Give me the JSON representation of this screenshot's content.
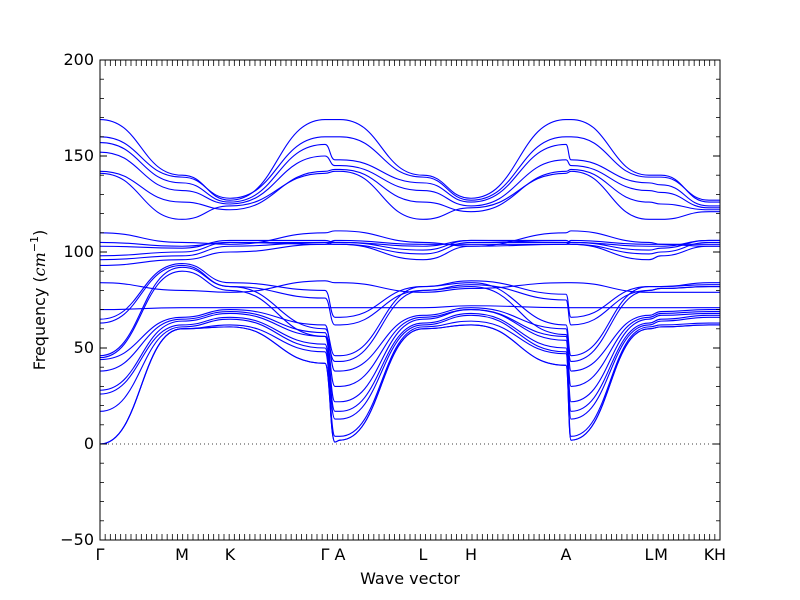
{
  "chart_data": {
    "type": "line",
    "title": "",
    "xlabel": "Wave vector",
    "ylabel": "Frequency (cm⁻¹)",
    "ylabel_parts": {
      "prefix": "Frequency (",
      "unit": "cm",
      "exponent": "−1",
      "suffix": ")"
    },
    "ylim": [
      -50,
      200
    ],
    "yticks": [
      -50,
      0,
      50,
      100,
      150,
      200
    ],
    "ytick_labels": [
      "−50",
      "0",
      "50",
      "100",
      "150",
      "200"
    ],
    "xlim": [
      0,
      1
    ],
    "high_symmetry_points": [
      {
        "label": "Γ",
        "x": 0.0
      },
      {
        "label": "M",
        "x": 0.1323
      },
      {
        "label": "K",
        "x": 0.2097
      },
      {
        "label": "Γ",
        "x": 0.3629
      },
      {
        "label": "A",
        "x": 0.3871
      },
      {
        "label": "L",
        "x": 0.521
      },
      {
        "label": "H",
        "x": 0.5984
      },
      {
        "label": "A",
        "x": 0.7516
      },
      {
        "label": "L",
        "x": 0.8855
      },
      {
        "label": "M",
        "x": 0.9048
      },
      {
        "label": "K",
        "x": 0.9823
      },
      {
        "label": "H",
        "x": 1.0
      }
    ],
    "zero_line": 0,
    "line_color": "#0000ff",
    "zero_line_color": "#000000",
    "grid": false,
    "series": [
      {
        "values": [
          0,
          60,
          61,
          42,
          1,
          2,
          60,
          62,
          41,
          2,
          60,
          61,
          62,
          62
        ]
      },
      {
        "values": [
          0,
          60,
          61,
          42,
          1,
          2,
          60,
          62,
          41,
          2,
          60,
          61,
          62,
          62
        ]
      },
      {
        "values": [
          0,
          60,
          62,
          48,
          4,
          4,
          61,
          64,
          47,
          4,
          61,
          62,
          63,
          63
        ]
      },
      {
        "values": [
          17,
          61,
          65,
          50,
          13,
          13,
          62,
          67,
          48,
          13,
          62,
          64,
          66,
          66
        ]
      },
      {
        "values": [
          26,
          62,
          66,
          52,
          17,
          17,
          63,
          68,
          50,
          17,
          63,
          65,
          67,
          67
        ]
      },
      {
        "values": [
          28,
          64,
          68,
          56,
          22,
          22,
          65,
          70,
          54,
          22,
          65,
          67,
          68,
          68
        ]
      },
      {
        "values": [
          38,
          65,
          69,
          58,
          30,
          30,
          66,
          70,
          56,
          30,
          66,
          68,
          69,
          69
        ]
      },
      {
        "values": [
          44,
          66,
          70,
          62,
          38,
          38,
          67,
          71,
          60,
          38,
          67,
          69,
          70,
          70
        ]
      },
      {
        "values": [
          45,
          90,
          80,
          56,
          43,
          43,
          80,
          82,
          57,
          43,
          80,
          81,
          82,
          82
        ]
      },
      {
        "values": [
          46,
          92,
          82,
          60,
          46,
          46,
          82,
          84,
          62,
          46,
          82,
          82,
          84,
          84
        ]
      },
      {
        "values": [
          63,
          93,
          82,
          76,
          62,
          62,
          80,
          83,
          75,
          62,
          80,
          81,
          82,
          82
        ]
      },
      {
        "values": [
          65,
          94,
          84,
          80,
          66,
          66,
          82,
          85,
          78,
          66,
          82,
          82,
          83,
          83
        ]
      },
      {
        "values": [
          70,
          71,
          71,
          71,
          71,
          71,
          71,
          72,
          71,
          71,
          71,
          71,
          71,
          71
        ]
      },
      {
        "values": [
          84,
          80,
          79,
          85,
          84,
          84,
          79,
          81,
          84,
          84,
          79,
          79,
          79,
          79
        ]
      },
      {
        "values": [
          93,
          96,
          100,
          104,
          104,
          104,
          96,
          103,
          104,
          104,
          96,
          98,
          103,
          103
        ]
      },
      {
        "values": [
          96,
          98,
          103,
          105,
          104,
          104,
          99,
          105,
          105,
          104,
          99,
          100,
          105,
          105
        ]
      },
      {
        "values": [
          98,
          100,
          105,
          105,
          105,
          105,
          101,
          106,
          105,
          105,
          101,
          102,
          106,
          106
        ]
      },
      {
        "values": [
          103,
          102,
          106,
          106,
          105,
          105,
          103,
          106,
          106,
          105,
          103,
          103,
          106,
          106
        ]
      },
      {
        "values": [
          105,
          103,
          105,
          104,
          106,
          106,
          104,
          104,
          104,
          106,
          104,
          104,
          104,
          104
        ]
      },
      {
        "values": [
          110,
          105,
          104,
          110,
          111,
          111,
          105,
          103,
          110,
          111,
          105,
          104,
          103,
          103
        ]
      },
      {
        "values": [
          141,
          117,
          124,
          141,
          142,
          142,
          117,
          123,
          141,
          142,
          117,
          117,
          121,
          121
        ]
      },
      {
        "values": [
          142,
          126,
          122,
          142,
          143,
          143,
          126,
          121,
          142,
          143,
          126,
          125,
          122,
          122
        ]
      },
      {
        "values": [
          152,
          132,
          125,
          150,
          145,
          145,
          132,
          124,
          148,
          145,
          132,
          131,
          123,
          123
        ]
      },
      {
        "values": [
          157,
          136,
          126,
          156,
          148,
          148,
          136,
          126,
          156,
          148,
          136,
          135,
          124,
          124
        ]
      },
      {
        "values": [
          160,
          139,
          128,
          160,
          160,
          160,
          139,
          127,
          160,
          160,
          139,
          139,
          127,
          127
        ]
      },
      {
        "values": [
          169,
          140,
          127,
          169,
          169,
          169,
          140,
          128,
          169,
          169,
          140,
          140,
          126,
          126
        ]
      }
    ],
    "series_x": [
      0.0,
      0.1323,
      0.2097,
      0.3629,
      0.379,
      0.3871,
      0.521,
      0.5984,
      0.7516,
      0.7597,
      0.8855,
      0.9048,
      0.9823,
      1.0
    ]
  }
}
